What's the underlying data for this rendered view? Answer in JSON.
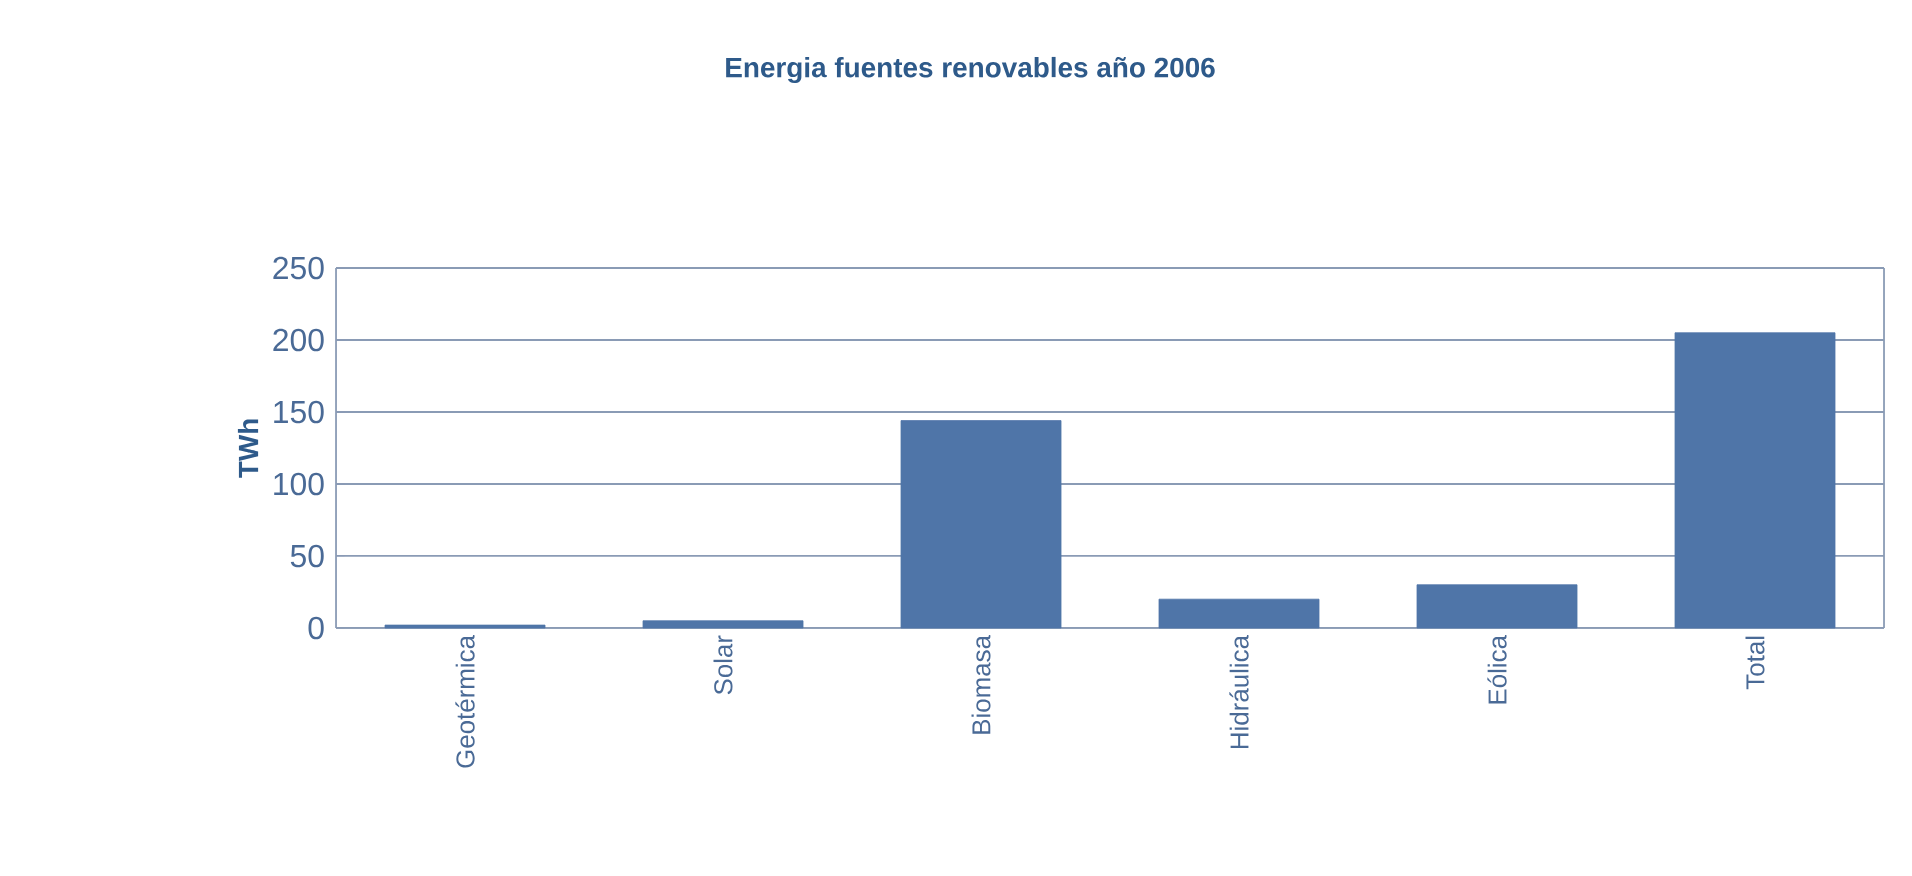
{
  "chart_data": {
    "type": "bar",
    "title": "Energia fuentes renovables año 2006",
    "ylabel": "TWh",
    "categories": [
      "Geotérmica",
      "Solar",
      "Biomasa",
      "Hidráulica",
      "Eólica",
      "Total"
    ],
    "values": [
      2,
      5,
      144,
      20,
      30,
      205
    ],
    "color": "#4f75a8",
    "ylim": [
      0,
      250
    ],
    "yticks": [
      0,
      50,
      100,
      150,
      200,
      250
    ],
    "grid": "y"
  }
}
